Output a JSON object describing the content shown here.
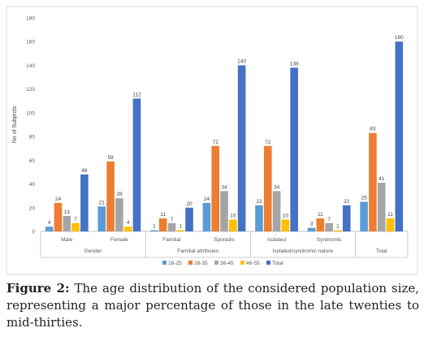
{
  "chart_data": {
    "type": "bar",
    "ylabel": "No of Subjects",
    "ylim": [
      0,
      180
    ],
    "yticks": [
      0,
      20,
      40,
      60,
      80,
      100,
      120,
      140,
      160,
      180
    ],
    "groups": [
      {
        "name": "Gender",
        "categories": [
          "Male",
          "Female"
        ]
      },
      {
        "name": "Familial attributes",
        "categories": [
          "Familial",
          "Sporadic"
        ]
      },
      {
        "name": "Isolated/syndromic nature",
        "categories": [
          "Isolated",
          "Syndromic"
        ]
      },
      {
        "name": "Total",
        "categories": [
          ""
        ]
      }
    ],
    "series": [
      {
        "name": "16-25",
        "color": "#5b9bd5",
        "values": [
          4,
          21,
          1,
          24,
          22,
          3,
          25
        ]
      },
      {
        "name": "26-35",
        "color": "#ed7d31",
        "values": [
          24,
          59,
          11,
          72,
          72,
          11,
          83
        ]
      },
      {
        "name": "36-45",
        "color": "#a5a5a5",
        "values": [
          13,
          28,
          7,
          34,
          34,
          7,
          41
        ]
      },
      {
        "name": "46-55",
        "color": "#ffc000",
        "values": [
          7,
          4,
          1,
          10,
          10,
          1,
          11
        ]
      },
      {
        "name": "Total",
        "color": "#4472c4",
        "values": [
          48,
          112,
          20,
          140,
          138,
          22,
          160
        ]
      }
    ],
    "grid": false,
    "legend": "bottom"
  },
  "caption": {
    "label": "Figure 2:",
    "text": " The age distribution of the considered population size, representing a major percentage of those in the late twenties to mid-thirties."
  }
}
